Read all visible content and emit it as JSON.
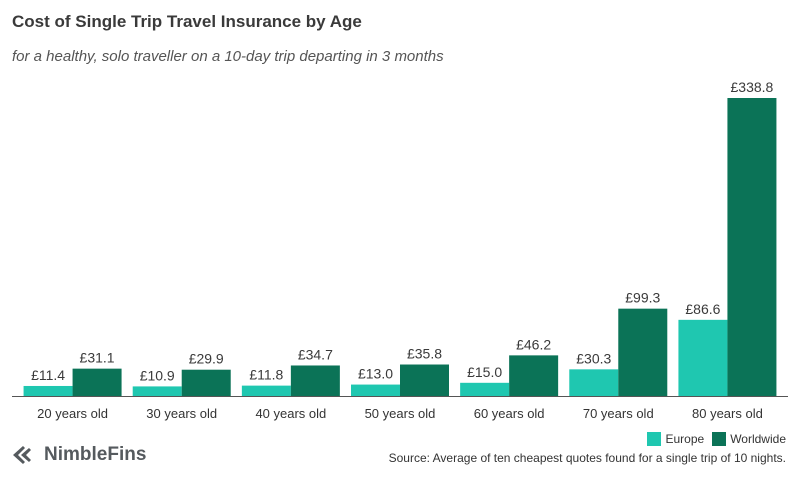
{
  "title": "Cost of Single Trip Travel Insurance by Age",
  "subtitle": "for a healthy, solo traveller on a 10-day trip departing in 3 months",
  "brand": {
    "name": "NimbleFins",
    "logo_icon": "nimblefins-logo-icon"
  },
  "source": "Source: Average of ten cheapest quotes found for a single trip of 10 nights.",
  "colors": {
    "europe": "#1fc7b0",
    "worldwide": "#0b7357",
    "axis": "#555555"
  },
  "chart_data": {
    "type": "bar",
    "categories": [
      "20 years old",
      "30 years old",
      "40 years old",
      "50 years old",
      "60 years old",
      "70 years old",
      "80 years old"
    ],
    "series": [
      {
        "name": "Europe",
        "values": [
          11.4,
          10.9,
          11.8,
          13.0,
          15.0,
          30.3,
          86.6
        ],
        "labels": [
          "£11.4",
          "£10.9",
          "£11.8",
          "£13.0",
          "£15.0",
          "£30.3",
          "£86.6"
        ]
      },
      {
        "name": "Worldwide",
        "values": [
          31.1,
          29.9,
          34.7,
          35.8,
          46.2,
          99.3,
          338.8
        ],
        "labels": [
          "£31.1",
          "£29.9",
          "£34.7",
          "£35.8",
          "£46.2",
          "£99.3",
          "£338.8"
        ]
      }
    ],
    "title": "Cost of Single Trip Travel Insurance by Age",
    "xlabel": "",
    "ylabel": "",
    "ylim": [
      0,
      338.8
    ],
    "grid": false,
    "legend": "bottom-right"
  }
}
